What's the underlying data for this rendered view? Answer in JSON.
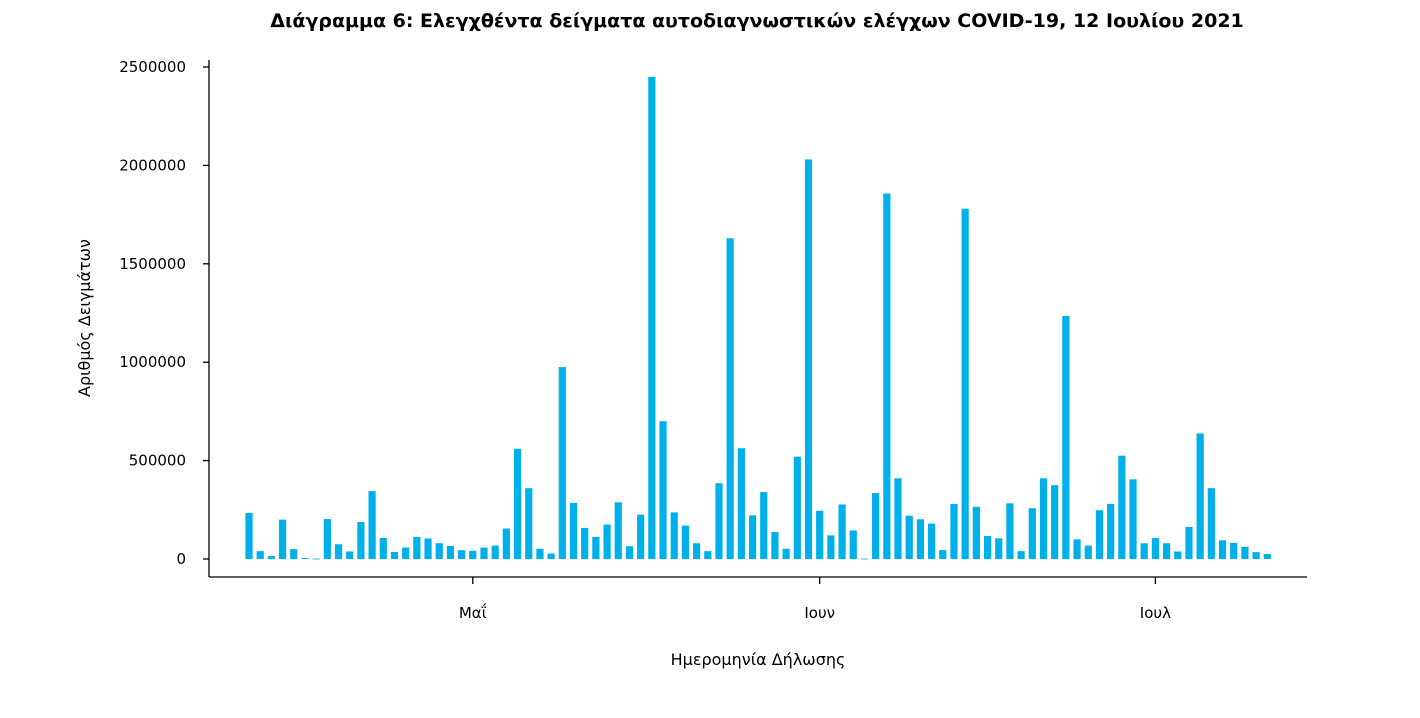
{
  "chart_data": {
    "type": "bar",
    "title": "Διάγραμμα 6: Ελεγχθέντα δείγματα αυτοδιαγνωστικών ελέγχων COVID-19, 12 Ιουλίου 2021",
    "xlabel": "Ημερομηνία Δήλωσης",
    "ylabel": "Αριθμός Δειγμάτων",
    "x_start": "2021-04-11",
    "x_end": "2021-07-11",
    "bar_color": "#00B0EA",
    "ylim": [
      0,
      2500000
    ],
    "yticks": [
      {
        "value": 0,
        "label": "0"
      },
      {
        "value": 500000,
        "label": "500000"
      },
      {
        "value": 1000000,
        "label": "1000000"
      },
      {
        "value": 1500000,
        "label": "1500000"
      },
      {
        "value": 2000000,
        "label": "2000000"
      },
      {
        "value": 2500000,
        "label": "2500000"
      }
    ],
    "xticks": [
      {
        "date": "2021-05-01",
        "label": "Μαΐ"
      },
      {
        "date": "2021-06-01",
        "label": "Ιουν"
      },
      {
        "date": "2021-07-01",
        "label": "Ιουλ"
      }
    ],
    "values": [
      234000,
      40000,
      15000,
      200000,
      50000,
      5000,
      2000,
      203000,
      75000,
      38000,
      188000,
      345000,
      107000,
      36000,
      58000,
      112000,
      104000,
      80000,
      66000,
      45000,
      42000,
      58000,
      68000,
      155000,
      560000,
      360000,
      52000,
      28000,
      975000,
      285000,
      158000,
      112000,
      175000,
      288000,
      65000,
      225000,
      2450000,
      700000,
      237000,
      170000,
      80000,
      40000,
      385000,
      1630000,
      563000,
      222000,
      340000,
      137000,
      52000,
      520000,
      2030000,
      245000,
      120000,
      277000,
      145000,
      2000,
      335000,
      1857000,
      410000,
      220000,
      202000,
      180000,
      45000,
      280000,
      1780000,
      265000,
      117000,
      105000,
      283000,
      40000,
      258000,
      410000,
      375000,
      1235000,
      100000,
      68000,
      248000,
      280000,
      525000,
      405000,
      80000,
      107000,
      80000,
      38000,
      163000,
      638000,
      360000,
      95000,
      82000,
      62000,
      35000,
      25000
    ]
  }
}
